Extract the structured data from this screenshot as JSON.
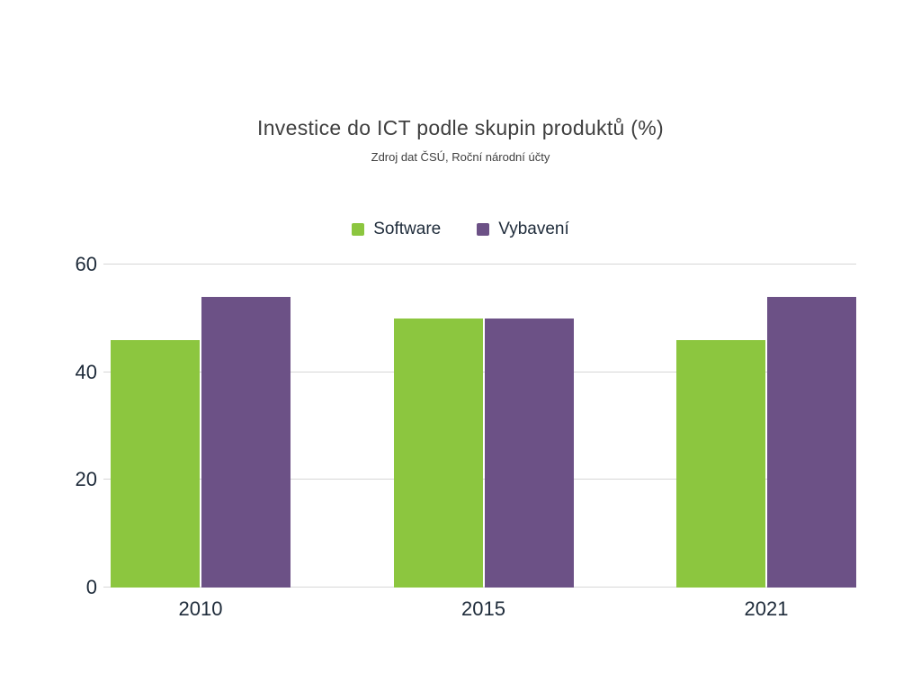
{
  "title": "Investice do ICT podle skupin produktů (%)",
  "subtitle": "Zdroj dat ČSÚ, Roční národní účty",
  "colors": {
    "software_green": "#8CC63F",
    "vybaveni_purple": "#6C5186",
    "axis_text": "#1E2B3A",
    "title_text": "#3F3F3F",
    "gridline": "#D7D7D7",
    "background": "#FFFFFF"
  },
  "legend": {
    "items": [
      {
        "label": "Software",
        "color": "#8CC63F"
      },
      {
        "label": "Vybavení",
        "color": "#6C5186"
      }
    ]
  },
  "chart_data": {
    "type": "bar",
    "title": "Investice do ICT podle skupin produktů (%)",
    "subtitle": "Zdroj dat ČSÚ, Roční národní účty",
    "categories": [
      "2010",
      "2015",
      "2021"
    ],
    "series": [
      {
        "name": "Software",
        "color": "#8CC63F",
        "values": [
          46,
          50,
          46
        ]
      },
      {
        "name": "Vybavení",
        "color": "#6C5186",
        "values": [
          54,
          50,
          54
        ]
      }
    ],
    "xlabel": "",
    "ylabel": "",
    "ylim": [
      0,
      60
    ],
    "yticks": [
      0,
      20,
      40,
      60
    ],
    "grid": true,
    "legend_position": "top-center"
  }
}
